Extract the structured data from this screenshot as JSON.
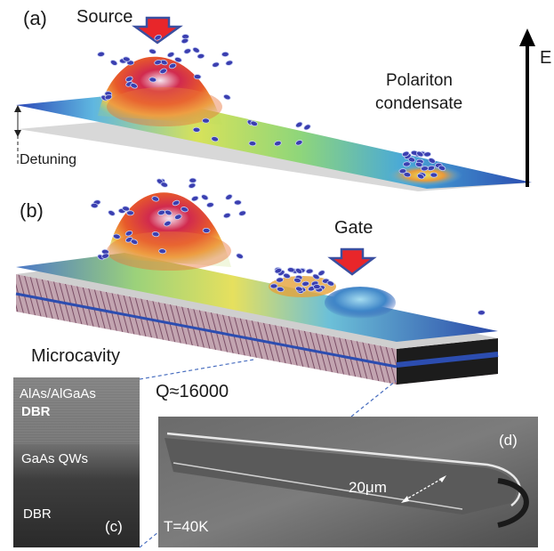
{
  "panel_a": {
    "label": "(a)",
    "source_label": "Source",
    "condensate_label_line1": "Polariton",
    "condensate_label_line2": "condensate",
    "detuning_label": "Detuning",
    "energy_axis_label": "E"
  },
  "panel_b": {
    "label": "(b)",
    "gate_label": "Gate",
    "microcavity_label": "Microcavity",
    "quality_factor": "Q≈16000"
  },
  "panel_c": {
    "label": "(c)",
    "layer_top_line1": "AlAs/AlGaAs",
    "layer_top_line2": "DBR",
    "layer_middle": "GaAs QWs",
    "layer_bottom": "DBR"
  },
  "panel_d": {
    "label": "(d)",
    "width_label": "20μm",
    "temperature": "T=40K"
  },
  "colors": {
    "arrow_red": "#e8262a",
    "arrow_blue_outline": "#3a4fa0",
    "sheet_blue": "#2b4aa8",
    "particle": "#3b3fb0"
  }
}
